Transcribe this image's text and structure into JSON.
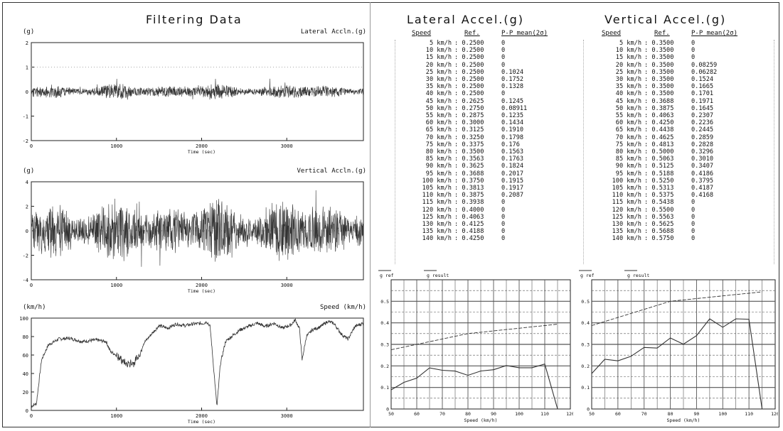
{
  "page": {
    "left_title": "Filtering Data",
    "lateral_title": "Lateral Accel.(g)",
    "vertical_title": "Vertical Accel.(g)"
  },
  "colors": {
    "ink": "#111111",
    "trace": "#333333",
    "grid": "#555555",
    "frame": "#222222"
  },
  "time_plots": [
    {
      "id": "lateral",
      "unit": "(g)",
      "name": "Lateral Accln.(g)",
      "ylim": [
        -2,
        2
      ],
      "yticks": [
        "2",
        "1",
        "0",
        "-1",
        "-2"
      ],
      "xticks": [
        "0",
        "1000",
        "2000",
        "3000"
      ],
      "xlabel": "Time (sec)",
      "amplitude": 0.15,
      "seed": 11
    },
    {
      "id": "vertical",
      "unit": "(g)",
      "name": "Vertical Accln.(g)",
      "ylim": [
        -4,
        4
      ],
      "yticks": [
        "4",
        "2",
        "0",
        "-2",
        "-4"
      ],
      "xticks": [
        "0",
        "1000",
        "2000",
        "3000"
      ],
      "xlabel": "Time (sec)",
      "amplitude": 0.55,
      "seed": 23
    },
    {
      "id": "speed",
      "unit": "(km/h)",
      "name": "Speed (km/h)",
      "ylim": [
        0,
        110
      ],
      "yticks": [
        "100",
        "80",
        "60",
        "40",
        "20",
        "0"
      ],
      "xticks": [
        "0",
        "1000",
        "2000",
        "3000"
      ],
      "xlabel": "Time (sec)"
    }
  ],
  "tables": [
    {
      "id": "lateral",
      "headers": [
        "Speed",
        "Ref.",
        "P-P mean(2σ)"
      ],
      "rows": [
        [
          "5 km/h",
          ": 0.2500",
          "0"
        ],
        [
          "10 km/h",
          ": 0.2500",
          "0"
        ],
        [
          "15 km/h",
          ": 0.2500",
          "0"
        ],
        [
          "20 km/h",
          ": 0.2500",
          "0"
        ],
        [
          "25 km/h",
          ": 0.2500",
          "0.1024"
        ],
        [
          "30 km/h",
          ": 0.2500",
          "0.1752"
        ],
        [
          "35 km/h",
          ": 0.2500",
          "0.1328"
        ],
        [
          "40 km/h",
          ": 0.2500",
          "0"
        ],
        [
          "45 km/h",
          ": 0.2625",
          "0.1245"
        ],
        [
          "50 km/h",
          ": 0.2750",
          "0.08911"
        ],
        [
          "55 km/h",
          ": 0.2875",
          "0.1235"
        ],
        [
          "60 km/h",
          ": 0.3000",
          "0.1434"
        ],
        [
          "65 km/h",
          ": 0.3125",
          "0.1910"
        ],
        [
          "70 km/h",
          ": 0.3250",
          "0.1798"
        ],
        [
          "75 km/h",
          ": 0.3375",
          "0.176"
        ],
        [
          "80 km/h",
          ": 0.3500",
          "0.1563"
        ],
        [
          "85 km/h",
          ": 0.3563",
          "0.1763"
        ],
        [
          "90 km/h",
          ": 0.3625",
          "0.1824"
        ],
        [
          "95 km/h",
          ": 0.3688",
          "0.2017"
        ],
        [
          "100 km/h",
          ": 0.3750",
          "0.1915"
        ],
        [
          "105 km/h",
          ": 0.3813",
          "0.1917"
        ],
        [
          "110 km/h",
          ": 0.3875",
          "0.2087"
        ],
        [
          "115 km/h",
          ": 0.3938",
          "0"
        ],
        [
          "120 km/h",
          ": 0.4000",
          "0"
        ],
        [
          "125 km/h",
          ": 0.4063",
          "0"
        ],
        [
          "130 km/h",
          ": 0.4125",
          "0"
        ],
        [
          "135 km/h",
          ": 0.4188",
          "0"
        ],
        [
          "140 km/h",
          ": 0.4250",
          "0"
        ]
      ]
    },
    {
      "id": "vertical",
      "headers": [
        "Speed",
        "Ref.",
        "P-P mean(2σ)"
      ],
      "rows": [
        [
          "5 km/h",
          ": 0.3500",
          "0"
        ],
        [
          "10 km/h",
          ": 0.3500",
          "0"
        ],
        [
          "15 km/h",
          ": 0.3500",
          "0"
        ],
        [
          "20 km/h",
          ": 0.3500",
          "0.08259"
        ],
        [
          "25 km/h",
          ": 0.3500",
          "0.06282"
        ],
        [
          "30 km/h",
          ": 0.3500",
          "0.1524"
        ],
        [
          "35 km/h",
          ": 0.3500",
          "0.1665"
        ],
        [
          "40 km/h",
          ": 0.3500",
          "0.1701"
        ],
        [
          "45 km/h",
          ": 0.3688",
          "0.1971"
        ],
        [
          "50 km/h",
          ": 0.3875",
          "0.1645"
        ],
        [
          "55 km/h",
          ": 0.4063",
          "0.2307"
        ],
        [
          "60 km/h",
          ": 0.4250",
          "0.2236"
        ],
        [
          "65 km/h",
          ": 0.4438",
          "0.2445"
        ],
        [
          "70 km/h",
          ": 0.4625",
          "0.2859"
        ],
        [
          "75 km/h",
          ": 0.4813",
          "0.2828"
        ],
        [
          "80 km/h",
          ": 0.5000",
          "0.3296"
        ],
        [
          "85 km/h",
          ": 0.5063",
          "0.3010"
        ],
        [
          "90 km/h",
          ": 0.5125",
          "0.3407"
        ],
        [
          "95 km/h",
          ": 0.5188",
          "0.4186"
        ],
        [
          "100 km/h",
          ": 0.5250",
          "0.3795"
        ],
        [
          "105 km/h",
          ": 0.5313",
          "0.4187"
        ],
        [
          "110 km/h",
          ": 0.5375",
          "0.4168"
        ],
        [
          "115 km/h",
          ": 0.5438",
          "0"
        ],
        [
          "120 km/h",
          ": 0.5500",
          "0"
        ],
        [
          "125 km/h",
          ": 0.5563",
          "0"
        ],
        [
          "130 km/h",
          ": 0.5625",
          "0"
        ],
        [
          "135 km/h",
          ": 0.5688",
          "0"
        ],
        [
          "140 km/h",
          ": 0.5750",
          "0"
        ]
      ]
    }
  ],
  "chart_data": [
    {
      "id": "lateral-summary",
      "type": "line",
      "legend": [
        "g ref",
        "g result"
      ],
      "x": [
        50,
        55,
        60,
        65,
        70,
        75,
        80,
        85,
        90,
        95,
        100,
        105,
        110,
        115
      ],
      "series": [
        {
          "name": "g ref",
          "values": [
            0.275,
            0.2875,
            0.3,
            0.3125,
            0.325,
            0.3375,
            0.35,
            0.3563,
            0.3625,
            0.3688,
            0.375,
            0.3813,
            0.3875,
            0.3938
          ]
        },
        {
          "name": "g result",
          "values": [
            0.08911,
            0.1235,
            0.1434,
            0.191,
            0.1798,
            0.176,
            0.1563,
            0.1763,
            0.1824,
            0.2017,
            0.1915,
            0.1917,
            0.2087,
            0
          ]
        }
      ],
      "xlim": [
        50,
        120
      ],
      "ylim": [
        0,
        0.6
      ],
      "xticks": [
        "50",
        "60",
        "70",
        "80",
        "90",
        "100",
        "110",
        "120"
      ],
      "yticks": [
        "0",
        "0.1",
        "0.2",
        "0.3",
        "0.4",
        "0.5"
      ],
      "xlabel": "Speed (km/h)",
      "grid": true
    },
    {
      "id": "vertical-summary",
      "type": "line",
      "legend": [
        "g ref",
        "g result"
      ],
      "x": [
        50,
        55,
        60,
        65,
        70,
        75,
        80,
        85,
        90,
        95,
        100,
        105,
        110,
        115
      ],
      "series": [
        {
          "name": "g ref",
          "values": [
            0.3875,
            0.4063,
            0.425,
            0.4438,
            0.4625,
            0.4813,
            0.5,
            0.5063,
            0.5125,
            0.5188,
            0.525,
            0.5313,
            0.5375,
            0.5438
          ]
        },
        {
          "name": "g result",
          "values": [
            0.1645,
            0.2307,
            0.2236,
            0.2445,
            0.2859,
            0.2828,
            0.3296,
            0.301,
            0.3407,
            0.4186,
            0.3795,
            0.4187,
            0.4168,
            0
          ]
        }
      ],
      "xlim": [
        50,
        120
      ],
      "ylim": [
        0,
        0.6
      ],
      "xticks": [
        "50",
        "60",
        "70",
        "80",
        "90",
        "100",
        "110",
        "120"
      ],
      "yticks": [
        "0",
        "0.1",
        "0.2",
        "0.3",
        "0.4",
        "0.5"
      ],
      "xlabel": "Speed (km/h)",
      "grid": true
    }
  ]
}
